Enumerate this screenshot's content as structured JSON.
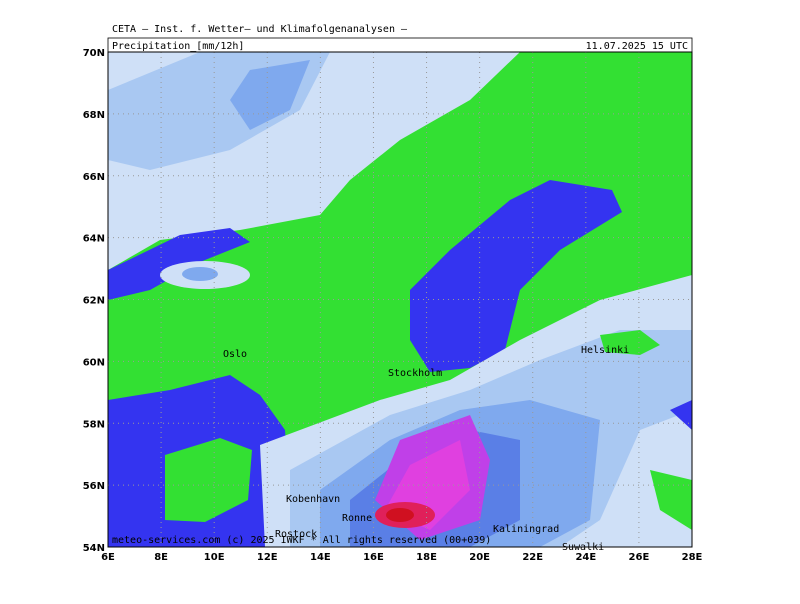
{
  "header": {
    "institute": "CETA – Inst. f. Wetter– und Klimafolgenanalysen –",
    "title": "Precipitation_[mm/12h]",
    "date": "11.07.2025 15 UTC"
  },
  "axes": {
    "lat_labels": [
      "54N",
      "56N",
      "58N",
      "60N",
      "62N",
      "64N",
      "66N",
      "68N",
      "70N"
    ],
    "lon_labels": [
      "6E",
      "8E",
      "10E",
      "12E",
      "14E",
      "16E",
      "18E",
      "20E",
      "22E",
      "24E",
      "26E",
      "28E"
    ]
  },
  "cities": [
    {
      "name": "Oslo"
    },
    {
      "name": "Stockholm"
    },
    {
      "name": "Helsinki"
    },
    {
      "name": "Kobenhavn"
    },
    {
      "name": "Ronne"
    },
    {
      "name": "Rostock"
    },
    {
      "name": "Kaliningrad"
    },
    {
      "name": "Suwalki"
    }
  ],
  "footer": {
    "credit": "meteo-services.com (c) 2025 IWKF * All rights reserved (00+039)"
  }
}
